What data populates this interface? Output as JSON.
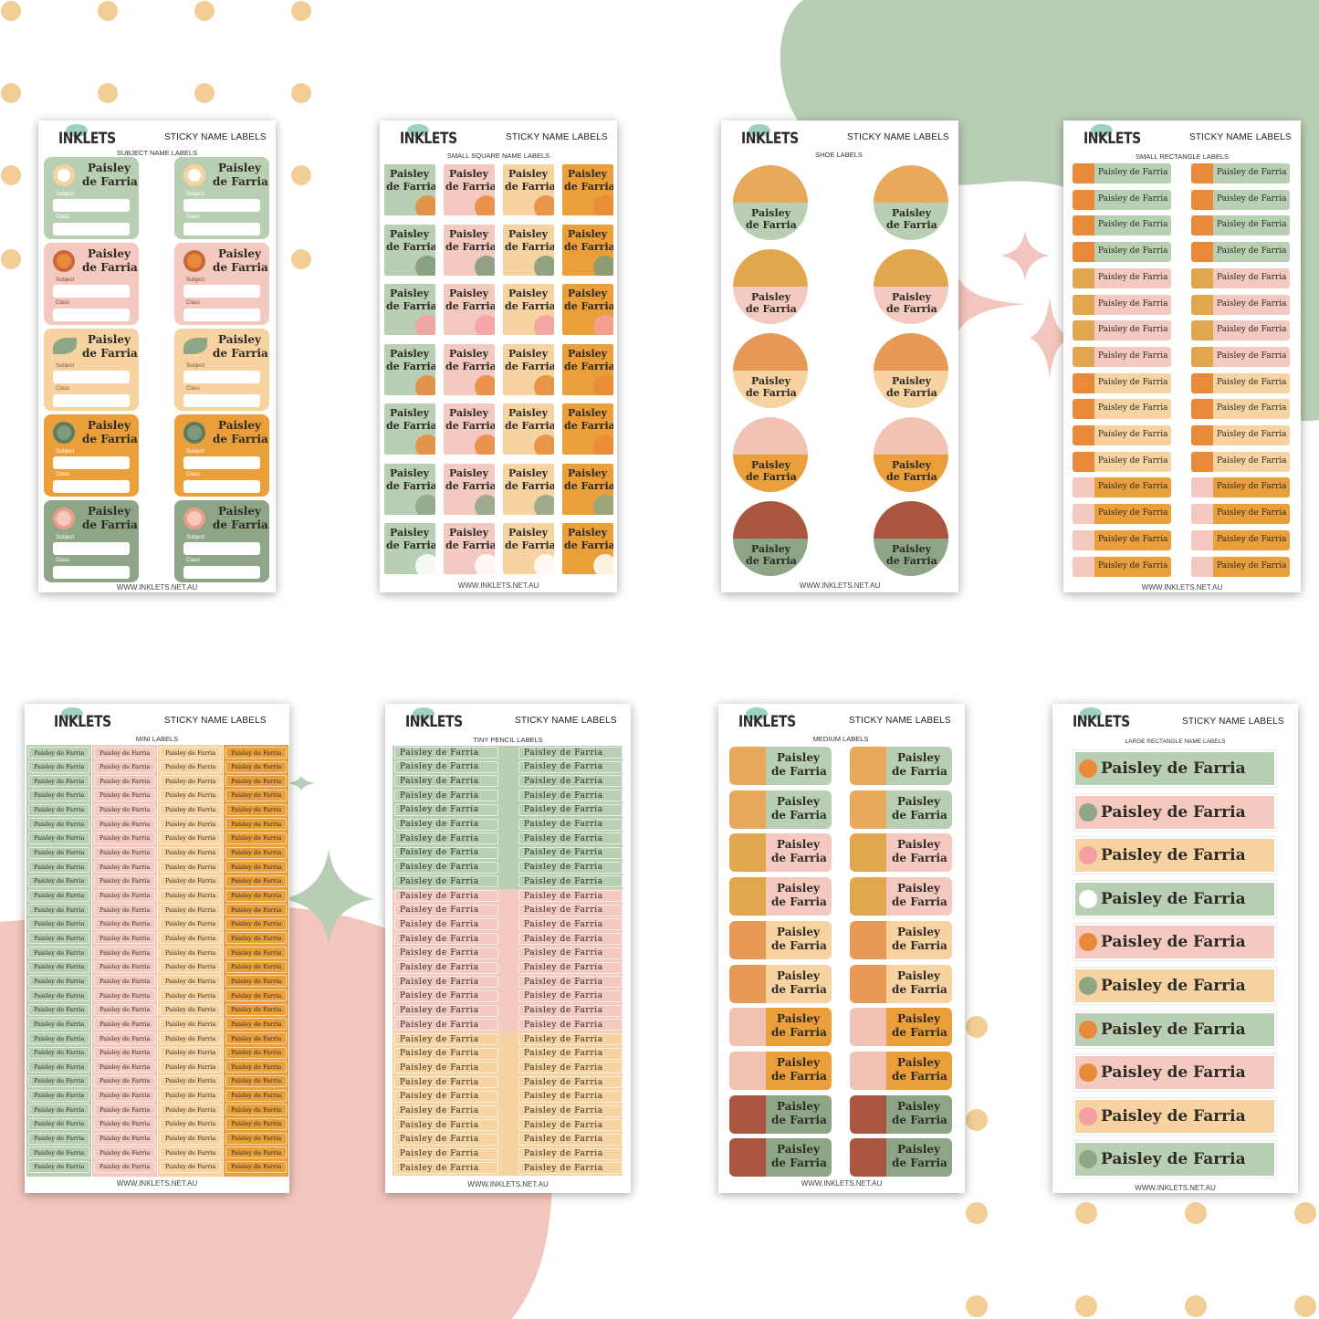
{
  "brand": "INKLETS",
  "heading": "STICKY NAME LABELS",
  "footer": "WWW.INKLETS.NET.AU",
  "name": "Paisley de Farria",
  "name_line1": "Paisley",
  "name_line2": "de Farria",
  "field_subject": "Subject",
  "field_class": "Class",
  "colors": {
    "sage": "#b9cfb3",
    "pink": "#f4c9bf",
    "peach": "#f6d3a1",
    "orange": "#ea9f3a",
    "dark_sage": "#8ea686",
    "rust": "#a9553f",
    "dot": "#f2cd95",
    "blob_green": "#b9cfb5",
    "blob_pink": "#f3c6bd"
  },
  "sheets": [
    {
      "subtitle": "SUBJECT NAME LABELS"
    },
    {
      "subtitle": "SMALL SQUARE NAME LABELS"
    },
    {
      "subtitle": "SHOE LABELS"
    },
    {
      "subtitle": "SMALL RECTANGLE LABELS"
    },
    {
      "subtitle": "MINI LABELS"
    },
    {
      "subtitle": "TINY PENCIL LABELS"
    },
    {
      "subtitle": "MEDIUM LABELS"
    },
    {
      "subtitle": "LARGE RECTANGLE NAME LABELS"
    }
  ]
}
